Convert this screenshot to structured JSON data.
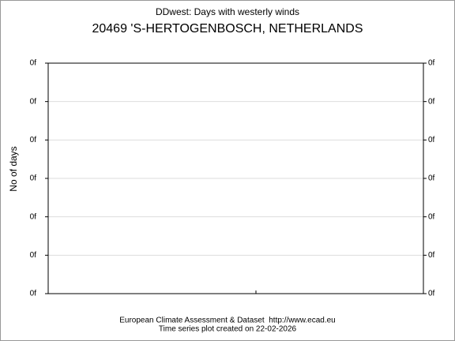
{
  "chart_data": {
    "type": "line",
    "title": "DDwest: Days with westerly winds",
    "subtitle": "20469 'S-HERTOGENBOSCH, NETHERLANDS",
    "y_label": "No of days",
    "ylim": [
      0,
      6
    ],
    "yticks": [
      {
        "value": 0,
        "label": "0f"
      },
      {
        "value": 1,
        "label": "0f"
      },
      {
        "value": 2,
        "label": "0f"
      },
      {
        "value": 3,
        "label": "0f"
      },
      {
        "value": 4,
        "label": "0f"
      },
      {
        "value": 5,
        "label": "0f"
      },
      {
        "value": 6,
        "label": "0f"
      }
    ],
    "grid": true,
    "footer": [
      "European Climate Assessment & Dataset  http://www.ecad.eu",
      "Time series plot created on 22-02-2026"
    ]
  }
}
